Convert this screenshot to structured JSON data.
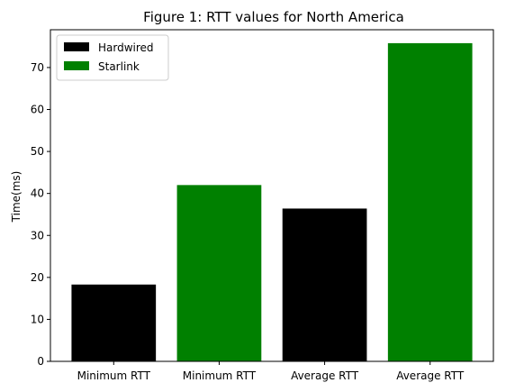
{
  "chart_data": {
    "type": "bar",
    "title": "Figure 1: RTT values for North America",
    "xlabel": "",
    "ylabel": "Time(ms)",
    "ylim": [
      0,
      79
    ],
    "yticks": [
      0,
      10,
      20,
      30,
      40,
      50,
      60,
      70
    ],
    "grid": false,
    "legend_placement": "top-left",
    "categories": [
      "Minimum RTT",
      "Minimum RTT",
      "Average RTT",
      "Average RTT"
    ],
    "bars": [
      {
        "category": "Minimum RTT",
        "series": "Hardwired",
        "value": 18.3
      },
      {
        "category": "Minimum RTT",
        "series": "Starlink",
        "value": 42.0
      },
      {
        "category": "Average RTT",
        "series": "Hardwired",
        "value": 36.4
      },
      {
        "category": "Average RTT",
        "series": "Starlink",
        "value": 75.8
      }
    ],
    "series": [
      {
        "name": "Hardwired",
        "color": "#000000"
      },
      {
        "name": "Starlink",
        "color": "#008000"
      }
    ]
  }
}
